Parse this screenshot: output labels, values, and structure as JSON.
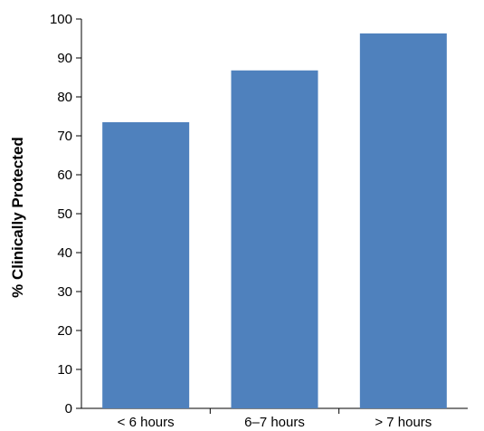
{
  "chart_data": {
    "type": "bar",
    "title": "",
    "xlabel": "",
    "ylabel": "% Clinically Protected",
    "categories": [
      "< 6 hours",
      "6–7 hours",
      "> 7 hours"
    ],
    "values": [
      73.5,
      86.8,
      96.3
    ],
    "ylim": [
      0,
      100
    ],
    "yticks": [
      0,
      10,
      20,
      30,
      40,
      50,
      60,
      70,
      80,
      90,
      100
    ],
    "grid": false,
    "legend": "none",
    "colors": {
      "bar": "#4f81bd",
      "axis": "#000000"
    }
  }
}
